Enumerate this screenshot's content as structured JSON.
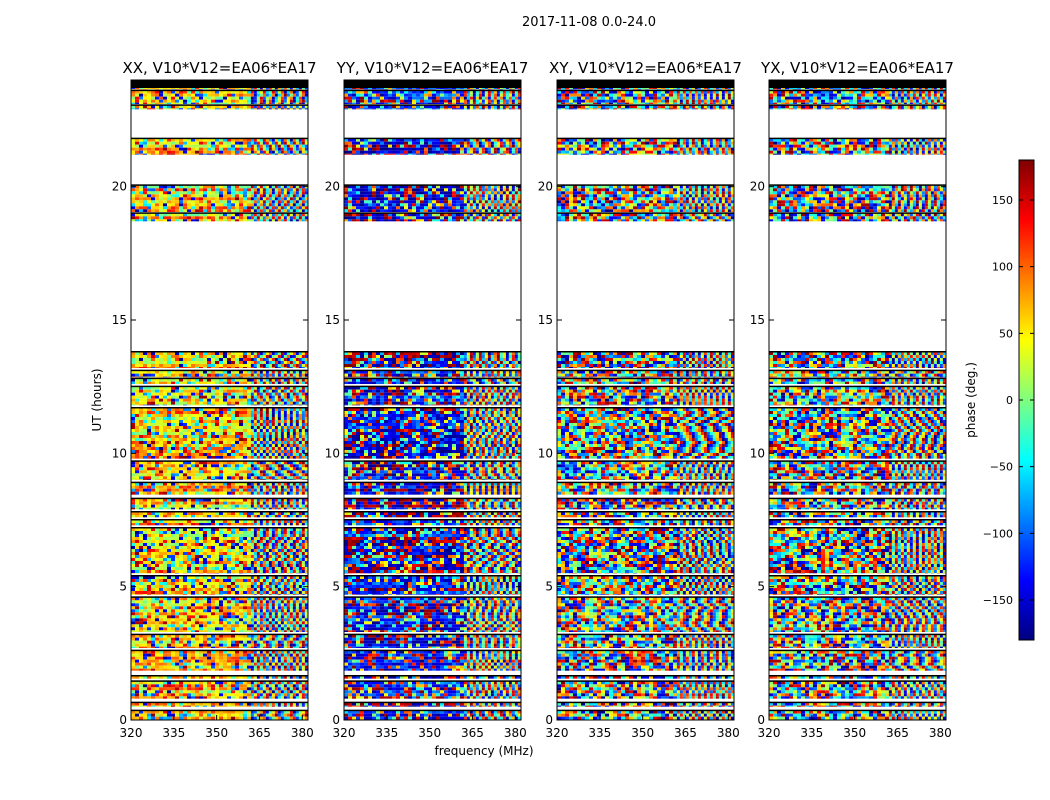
{
  "figure_title": "2017-11-08 0.0-24.0",
  "xlabel": "frequency (MHz)",
  "ylabel": "UT (hours)",
  "colorbar": {
    "label": "phase (deg.)",
    "range": [
      -180,
      180
    ],
    "ticks": [
      -150,
      -100,
      -50,
      0,
      50,
      100,
      150
    ],
    "tick_labels": [
      "−150",
      "−100",
      "−50",
      "0",
      "50",
      "100",
      "150"
    ],
    "colors": [
      "#00007f",
      "#0000ff",
      "#007fff",
      "#00ffff",
      "#7fff7f",
      "#ffff00",
      "#ff7f00",
      "#ff0000",
      "#7f0000"
    ]
  },
  "chart_data": [
    {
      "type": "heatmap",
      "title": "XX, V10*V12=EA06*EA17",
      "xlabel": "frequency (MHz)",
      "ylabel": "UT (hours)",
      "xlim": [
        320,
        382
      ],
      "ylim": [
        0,
        24
      ],
      "xticks": [
        320,
        335,
        350,
        365,
        380
      ],
      "yticks": [
        0,
        5,
        10,
        15,
        20
      ],
      "value": "phase (deg.)",
      "coherent_bias_deg": 60
    },
    {
      "type": "heatmap",
      "title": "YY, V10*V12=EA06*EA17",
      "xlabel": "frequency (MHz)",
      "ylabel": "UT (hours)",
      "xlim": [
        320,
        382
      ],
      "ylim": [
        0,
        24
      ],
      "xticks": [
        320,
        335,
        350,
        365,
        380
      ],
      "yticks": [
        0,
        5,
        10,
        15,
        20
      ],
      "value": "phase (deg.)",
      "coherent_bias_deg": -150
    },
    {
      "type": "heatmap",
      "title": "XY, V10*V12=EA06*EA17",
      "xlabel": "frequency (MHz)",
      "ylabel": "UT (hours)",
      "xlim": [
        320,
        382
      ],
      "ylim": [
        0,
        24
      ],
      "xticks": [
        320,
        335,
        350,
        365,
        380
      ],
      "yticks": [
        0,
        5,
        10,
        15,
        20
      ],
      "value": "phase (deg.)",
      "coherent_bias_deg": null
    },
    {
      "type": "heatmap",
      "title": "YX, V10*V12=EA06*EA17",
      "xlabel": "frequency (MHz)",
      "ylabel": "UT (hours)",
      "xlim": [
        320,
        382
      ],
      "ylim": [
        0,
        24
      ],
      "xticks": [
        320,
        335,
        350,
        365,
        380
      ],
      "yticks": [
        0,
        5,
        10,
        15,
        20
      ],
      "value": "phase (deg.)",
      "coherent_bias_deg": null
    }
  ],
  "data_blocks_hours": [
    [
      0.0,
      0.35
    ],
    [
      0.5,
      0.65
    ],
    [
      0.8,
      1.45
    ],
    [
      1.55,
      1.65
    ],
    [
      1.85,
      2.6
    ],
    [
      2.7,
      3.2
    ],
    [
      3.3,
      4.6
    ],
    [
      4.7,
      5.4
    ],
    [
      5.5,
      7.2
    ],
    [
      7.3,
      7.5
    ],
    [
      7.6,
      7.8
    ],
    [
      7.9,
      8.3
    ],
    [
      8.45,
      8.9
    ],
    [
      9.0,
      9.7
    ],
    [
      9.8,
      11.7
    ],
    [
      11.8,
      12.5
    ],
    [
      12.6,
      12.8
    ],
    [
      12.85,
      13.1
    ],
    [
      13.2,
      13.8
    ],
    [
      18.7,
      19.0
    ],
    [
      19.05,
      20.05
    ],
    [
      21.2,
      21.8
    ],
    [
      22.9,
      23.05
    ],
    [
      23.1,
      23.6
    ],
    [
      23.65,
      24.0
    ]
  ],
  "fringe_start_mhz": 362
}
